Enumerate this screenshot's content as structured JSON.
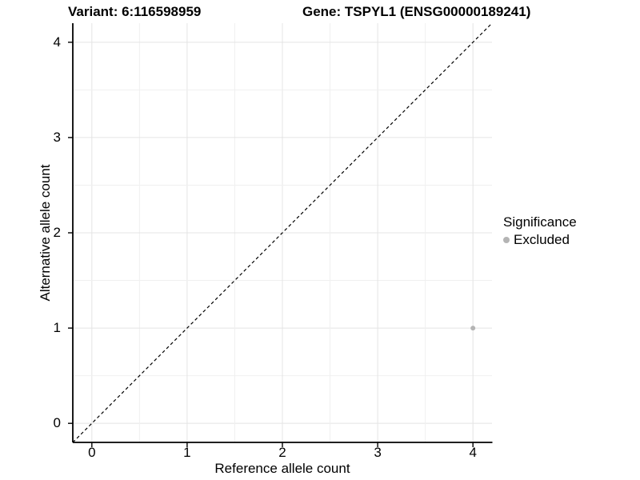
{
  "titles": {
    "variant": "Variant: 6:116598959",
    "gene": "Gene: TSPYL1 (ENSG00000189241)"
  },
  "axes": {
    "x": {
      "label": "Reference allele count"
    },
    "y": {
      "label": "Alternative allele count"
    }
  },
  "legend": {
    "title": "Significance",
    "items": [
      {
        "label": "Excluded",
        "color": "#b4b4b4"
      }
    ]
  },
  "colors": {
    "background": "#ffffff",
    "axis_line": "#000000",
    "grid_major": "#e4e4e4",
    "grid_minor": "#f0f0f0",
    "reference_line": "#000000",
    "point": "#b4b4b4"
  },
  "chart_data": {
    "type": "scatter",
    "title": "Variant: 6:116598959 | Gene: TSPYL1 (ENSG00000189241)",
    "xlabel": "Reference allele count",
    "ylabel": "Alternative allele count",
    "xlim": [
      -0.2,
      4.2
    ],
    "ylim": [
      -0.2,
      4.2
    ],
    "x_ticks": [
      0,
      1,
      2,
      3,
      4
    ],
    "y_ticks": [
      0,
      1,
      2,
      3,
      4
    ],
    "grid": {
      "minor_every": 0.5,
      "major_every": 1
    },
    "reference_line": {
      "kind": "identity",
      "from": -0.2,
      "to": 4.2,
      "style": "dashed"
    },
    "legend_position": "right",
    "series": [
      {
        "name": "Excluded",
        "color": "#b4b4b4",
        "point_radius": 3,
        "points": [
          {
            "x": 4,
            "y": 1
          }
        ]
      }
    ]
  }
}
